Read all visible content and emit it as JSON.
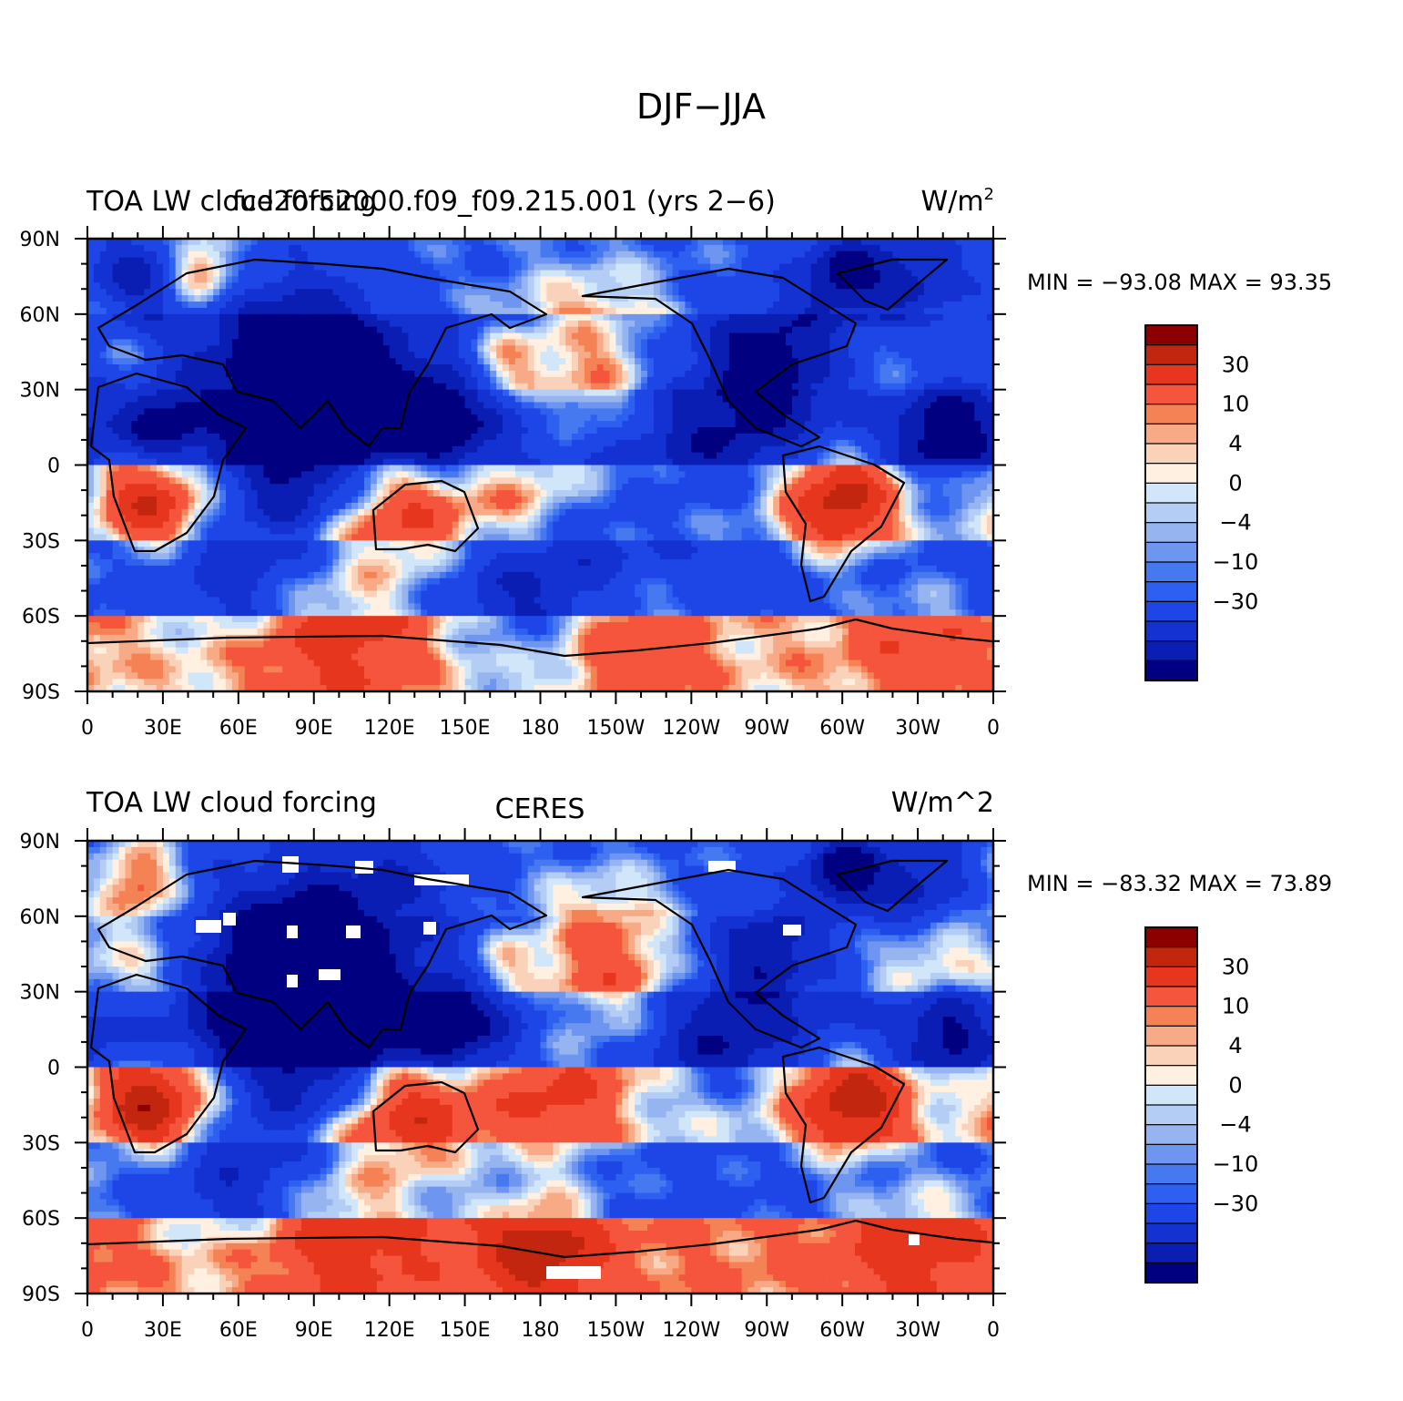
{
  "figure": {
    "title": "DJF−JJA"
  },
  "panels": [
    {
      "left_label": "TOA LW cloud forcing",
      "overlap_label": "fce20f52000.f09_f09.215.001 (yrs 2−6)",
      "center_label": "",
      "units": "W/m",
      "units_sup": "2",
      "min_max": "MIN = −93.08 MAX =   93.35",
      "field": {
        "bands": [
          {
            "lat": [
              60,
              90
            ],
            "base": -10,
            "blobs": [
              [
                20,
                75,
                -25,
                12
              ],
              [
                330,
                70,
                -30,
                14
              ],
              [
                300,
                75,
                -35,
                12
              ],
              [
                45,
                78,
                25,
                10
              ]
            ]
          },
          {
            "lat": [
              30,
              60
            ],
            "base": -20,
            "blobs": [
              [
                200,
                45,
                25,
                22
              ],
              [
                165,
                40,
                20,
                12
              ],
              [
                15,
                45,
                12,
                10
              ],
              [
                330,
                45,
                20,
                18
              ],
              [
                270,
                40,
                -30,
                16
              ],
              [
                80,
                45,
                -25,
                22
              ]
            ]
          },
          {
            "lat": [
              0,
              30
            ],
            "base": -25,
            "blobs": [
              [
                95,
                20,
                -40,
                25
              ],
              [
                140,
                15,
                -35,
                15
              ],
              [
                200,
                20,
                10,
                14
              ],
              [
                250,
                10,
                -12,
                18
              ],
              [
                340,
                15,
                -30,
                14
              ],
              [
                30,
                15,
                -25,
                10
              ]
            ]
          },
          {
            "lat": [
              -30,
              0
            ],
            "base": -5,
            "blobs": [
              [
                25,
                -15,
                35,
                14
              ],
              [
                130,
                -15,
                32,
                22
              ],
              [
                175,
                -15,
                18,
                15
              ],
              [
                300,
                -15,
                40,
                16
              ],
              [
                235,
                -10,
                -2,
                20
              ],
              [
                80,
                -10,
                -20,
                14
              ]
            ]
          },
          {
            "lat": [
              -60,
              -30
            ],
            "base": -15,
            "blobs": [
              [
                180,
                -45,
                -20,
                30
              ],
              [
                60,
                -45,
                -12,
                20
              ],
              [
                320,
                -40,
                -5,
                16
              ]
            ]
          },
          {
            "lat": [
              -90,
              -60
            ],
            "base": 5,
            "blobs": [
              [
                100,
                -66,
                18,
                25
              ],
              [
                215,
                -70,
                20,
                20
              ],
              [
                330,
                -66,
                15,
                20
              ],
              [
                100,
                -80,
                2,
                30
              ]
            ]
          }
        ]
      }
    },
    {
      "left_label": "TOA LW cloud forcing",
      "overlap_label": "",
      "center_label": "CERES",
      "units": "W/m^2",
      "units_sup": "",
      "min_max": "MIN = −83.32 MAX =   73.89",
      "field": {
        "bands": [
          {
            "lat": [
              60,
              90
            ],
            "base": -12,
            "blobs": [
              [
                20,
                75,
                25,
                12
              ],
              [
                330,
                70,
                -30,
                14
              ],
              [
                300,
                78,
                -40,
                10
              ],
              [
                120,
                75,
                -15,
                20
              ]
            ]
          },
          {
            "lat": [
              30,
              60
            ],
            "base": -15,
            "blobs": [
              [
                205,
                45,
                28,
                22
              ],
              [
                165,
                40,
                15,
                10
              ],
              [
                20,
                40,
                15,
                14
              ],
              [
                335,
                45,
                25,
                18
              ],
              [
                270,
                45,
                -25,
                14
              ],
              [
                80,
                45,
                -35,
                22
              ]
            ]
          },
          {
            "lat": [
              0,
              30
            ],
            "base": -25,
            "blobs": [
              [
                95,
                20,
                -45,
                25
              ],
              [
                145,
                15,
                -30,
                14
              ],
              [
                210,
                20,
                8,
                18
              ],
              [
                250,
                10,
                -15,
                16
              ],
              [
                340,
                15,
                -25,
                12
              ]
            ]
          },
          {
            "lat": [
              -30,
              0
            ],
            "base": 0,
            "blobs": [
              [
                25,
                -15,
                38,
                14
              ],
              [
                130,
                -15,
                30,
                20
              ],
              [
                185,
                -15,
                22,
                18
              ],
              [
                305,
                -15,
                38,
                16
              ],
              [
                80,
                -10,
                -15,
                14
              ]
            ]
          },
          {
            "lat": [
              -60,
              -30
            ],
            "base": -12,
            "blobs": [
              [
                180,
                -45,
                -2,
                30
              ],
              [
                60,
                -45,
                -15,
                20
              ],
              [
                320,
                -40,
                -8,
                16
              ]
            ]
          },
          {
            "lat": [
              -90,
              -60
            ],
            "base": 10,
            "blobs": [
              [
                100,
                -66,
                22,
                25
              ],
              [
                180,
                -72,
                28,
                18
              ],
              [
                330,
                -66,
                20,
                20
              ],
              [
                80,
                -78,
                -6,
                30
              ]
            ]
          }
        ]
      }
    }
  ],
  "colorbar": {
    "colors": [
      "#000080",
      "#0a1eb4",
      "#1432d2",
      "#1e46e6",
      "#2d5ff0",
      "#4678f0",
      "#6e96f0",
      "#96b4f0",
      "#b4cdf5",
      "#d2e6fa",
      "#fff0e1",
      "#fad2b9",
      "#f8aa87",
      "#f58255",
      "#f5553c",
      "#e6371e",
      "#c3260f",
      "#8c0000"
    ],
    "labels": [
      "30",
      "10",
      "4",
      "0",
      "−4",
      "−10",
      "−30"
    ]
  },
  "axes": {
    "y_ticks": [
      "90N",
      "60N",
      "30N",
      "0",
      "30S",
      "60S",
      "90S"
    ],
    "x_ticks": [
      "0",
      "30E",
      "60E",
      "90E",
      "120E",
      "150E",
      "180",
      "150W",
      "120W",
      "90W",
      "60W",
      "30W",
      "0"
    ]
  }
}
